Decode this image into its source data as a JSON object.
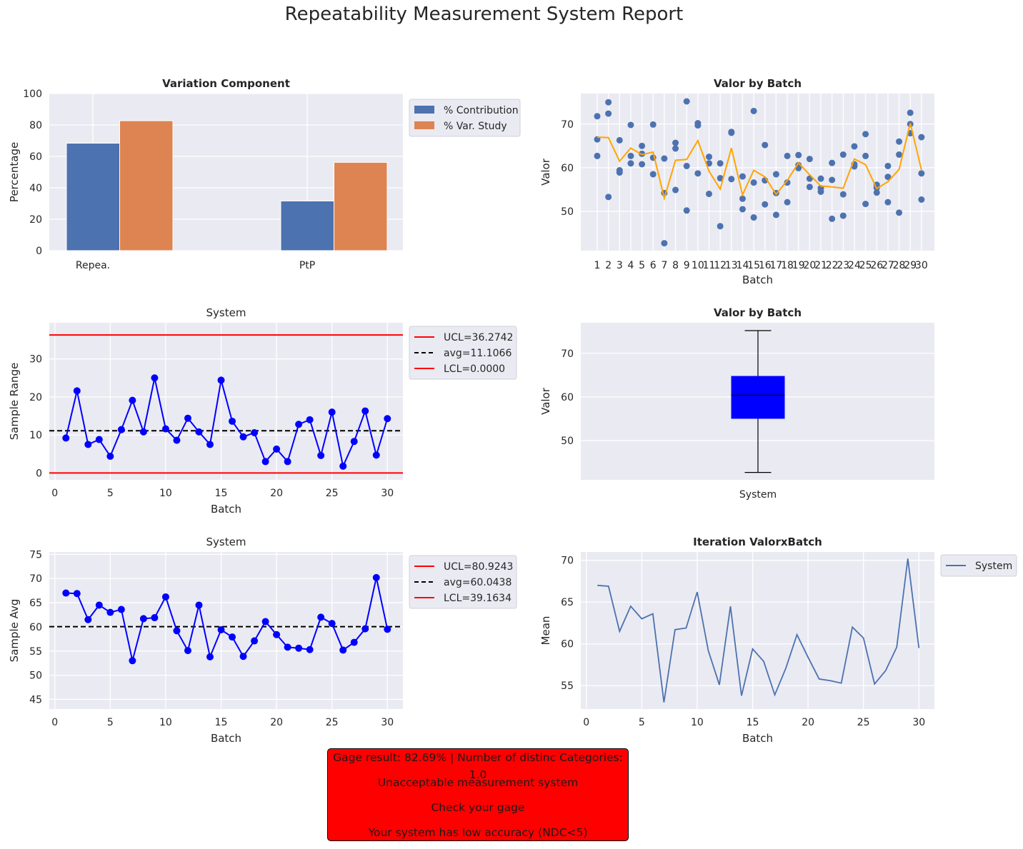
{
  "suptitle": "Repeatability Measurement System Report",
  "colors": {
    "blue": "#4c72b0",
    "orange": "#dd8452",
    "pure_blue": "#0000ff",
    "red": "#ff0000",
    "line_orange": "#ffa500",
    "panel_bg": "#eaeaf2"
  },
  "chart_data": [
    {
      "id": "variation",
      "type": "bar",
      "title": "Variation Component",
      "xlabel": "",
      "ylabel": "Percentage",
      "ylim": [
        0,
        100
      ],
      "yticks": [
        0,
        20,
        40,
        60,
        80,
        100
      ],
      "categories": [
        "Repea.",
        "PtP"
      ],
      "series": [
        {
          "name": "% Contribution",
          "values": [
            68.4,
            31.6
          ]
        },
        {
          "name": "% Var. Study",
          "values": [
            82.69,
            56.2
          ]
        }
      ],
      "legend": "upper-right-outside"
    },
    {
      "id": "valor_scatter",
      "type": "scatter",
      "title": "Valor by Batch",
      "xlabel": "Batch",
      "ylabel": "Valor",
      "ylim": [
        41,
        77
      ],
      "yticks": [
        50,
        60,
        70
      ],
      "categories": [
        "1",
        "2",
        "3",
        "4",
        "5",
        "6",
        "7",
        "8",
        "9",
        "10",
        "11",
        "12",
        "13",
        "14",
        "15",
        "16",
        "17",
        "18",
        "19",
        "20",
        "21",
        "22",
        "23",
        "24",
        "25",
        "26",
        "27",
        "28",
        "29",
        "30"
      ],
      "points": [
        [
          71.8,
          66.5,
          62.7
        ],
        [
          75.0,
          72.4,
          53.3
        ],
        [
          66.3,
          59.4,
          58.9
        ],
        [
          69.8,
          62.7,
          61.0
        ],
        [
          65.0,
          63.2,
          60.8
        ],
        [
          69.9,
          62.3,
          58.5
        ],
        [
          62.1,
          54.2,
          42.7
        ],
        [
          65.7,
          64.4,
          54.9
        ],
        [
          75.2,
          60.4,
          50.2
        ],
        [
          70.2,
          69.7,
          58.7
        ],
        [
          62.5,
          61.0,
          54.0
        ],
        [
          61.0,
          57.6,
          46.6
        ],
        [
          68.2,
          68.0,
          57.4
        ],
        [
          58.0,
          52.9,
          50.5
        ],
        [
          73.0,
          56.6,
          48.6
        ],
        [
          65.2,
          57.1,
          51.6
        ],
        [
          58.5,
          54.2,
          49.2
        ],
        [
          62.7,
          56.6,
          52.1
        ],
        [
          62.9,
          60.6,
          59.9
        ],
        [
          62.0,
          57.5,
          55.6
        ],
        [
          57.5,
          55.3,
          54.5
        ],
        [
          61.1,
          57.2,
          48.3
        ],
        [
          63.0,
          53.9,
          49.0
        ],
        [
          64.9,
          60.8,
          60.3
        ],
        [
          67.7,
          62.7,
          51.7
        ],
        [
          56.1,
          55.4,
          54.3
        ],
        [
          60.4,
          57.9,
          52.1
        ],
        [
          66.0,
          63.0,
          49.7
        ],
        [
          72.6,
          70.0,
          67.9
        ],
        [
          67.0,
          58.7,
          52.7
        ]
      ],
      "mean_line": [
        67.0,
        66.9,
        61.5,
        64.5,
        63.0,
        63.6,
        53.0,
        61.7,
        61.9,
        66.2,
        59.2,
        55.1,
        64.5,
        53.8,
        59.4,
        57.9,
        53.9,
        57.1,
        61.1,
        58.4,
        55.8,
        55.6,
        55.3,
        62.0,
        60.7,
        55.2,
        56.8,
        59.6,
        70.2,
        59.5
      ]
    },
    {
      "id": "range_chart",
      "type": "line",
      "title": "System",
      "xlabel": "Batch",
      "ylabel": "Sample Range",
      "xlim": [
        -0.5,
        31.4
      ],
      "xticks": [
        0,
        5,
        10,
        15,
        20,
        25,
        30
      ],
      "ylim": [
        -1.8,
        39.5
      ],
      "yticks": [
        0,
        10,
        20,
        30
      ],
      "x": [
        1,
        2,
        3,
        4,
        5,
        6,
        7,
        8,
        9,
        10,
        11,
        12,
        13,
        14,
        15,
        16,
        17,
        18,
        19,
        20,
        21,
        22,
        23,
        24,
        25,
        26,
        27,
        28,
        29,
        30
      ],
      "values": [
        9.2,
        21.6,
        7.5,
        8.8,
        4.4,
        11.4,
        19.1,
        10.8,
        25.0,
        11.6,
        8.6,
        14.4,
        10.8,
        7.5,
        24.4,
        13.6,
        9.5,
        10.6,
        3.0,
        6.3,
        3.0,
        12.8,
        14.0,
        4.6,
        16.0,
        1.8,
        8.3,
        16.3,
        4.7,
        14.3
      ],
      "series": [
        {
          "name": "UCL=36.2742",
          "value": 36.2742,
          "style": "solid",
          "color": "#ff0000"
        },
        {
          "name": "avg=11.1066",
          "value": 11.1066,
          "style": "dashed",
          "color": "#000000"
        },
        {
          "name": "LCL=0.0000",
          "value": 0.0,
          "style": "solid",
          "color": "#ff0000"
        }
      ]
    },
    {
      "id": "valor_box",
      "type": "box",
      "title": "Valor by Batch",
      "xlabel": "",
      "ylabel": "Valor",
      "ylim": [
        41,
        77
      ],
      "yticks": [
        50,
        60,
        70
      ],
      "categories": [
        "System"
      ],
      "box": {
        "min": 42.7,
        "q1": 55.0,
        "median": 60.4,
        "q3": 64.8,
        "max": 75.2
      }
    },
    {
      "id": "avg_chart",
      "type": "line",
      "title": "System",
      "xlabel": "Batch",
      "ylabel": "Sample Avg",
      "xlim": [
        -0.5,
        31.4
      ],
      "xticks": [
        0,
        5,
        10,
        15,
        20,
        25,
        30
      ],
      "ylim": [
        43,
        75.5
      ],
      "yticks": [
        45,
        50,
        55,
        60,
        65,
        70,
        75
      ],
      "x": [
        1,
        2,
        3,
        4,
        5,
        6,
        7,
        8,
        9,
        10,
        11,
        12,
        13,
        14,
        15,
        16,
        17,
        18,
        19,
        20,
        21,
        22,
        23,
        24,
        25,
        26,
        27,
        28,
        29,
        30
      ],
      "values": [
        67.0,
        66.9,
        61.5,
        64.5,
        63.0,
        63.6,
        53.0,
        61.7,
        61.9,
        66.2,
        59.2,
        55.1,
        64.5,
        53.8,
        59.4,
        57.9,
        53.9,
        57.1,
        61.1,
        58.4,
        55.8,
        55.6,
        55.3,
        62.0,
        60.7,
        55.2,
        56.8,
        59.6,
        70.2,
        59.5
      ],
      "series": [
        {
          "name": "UCL=80.9243",
          "value": 80.9243,
          "style": "solid",
          "color": "#ff0000"
        },
        {
          "name": "avg=60.0438",
          "value": 60.0438,
          "style": "dashed",
          "color": "#000000"
        },
        {
          "name": "LCL=39.1634",
          "value": 39.1634,
          "style": "solid",
          "color": "#ff0000"
        }
      ]
    },
    {
      "id": "iteration",
      "type": "line",
      "title": "Iteration ValorxBatch",
      "xlabel": "Batch",
      "ylabel": "Mean",
      "xlim": [
        -0.5,
        31.4
      ],
      "xticks": [
        0,
        5,
        10,
        15,
        20,
        25,
        30
      ],
      "ylim": [
        52.2,
        71
      ],
      "yticks": [
        55,
        60,
        65,
        70
      ],
      "x": [
        1,
        2,
        3,
        4,
        5,
        6,
        7,
        8,
        9,
        10,
        11,
        12,
        13,
        14,
        15,
        16,
        17,
        18,
        19,
        20,
        21,
        22,
        23,
        24,
        25,
        26,
        27,
        28,
        29,
        30
      ],
      "series": [
        {
          "name": "System",
          "values": [
            67.0,
            66.9,
            61.5,
            64.5,
            63.0,
            63.6,
            53.0,
            61.7,
            61.9,
            66.2,
            59.2,
            55.1,
            64.5,
            53.8,
            59.4,
            57.9,
            53.9,
            57.1,
            61.1,
            58.4,
            55.8,
            55.6,
            55.3,
            62.0,
            60.7,
            55.2,
            56.8,
            59.6,
            70.2,
            59.5
          ]
        }
      ]
    }
  ],
  "report": {
    "lines": [
      "Gage result: 82.69% | Number of distinc Categories: 1.0",
      "Unacceptable measurement system",
      "Check your gage",
      "Your system has low accuracy (NDC<5)"
    ]
  }
}
